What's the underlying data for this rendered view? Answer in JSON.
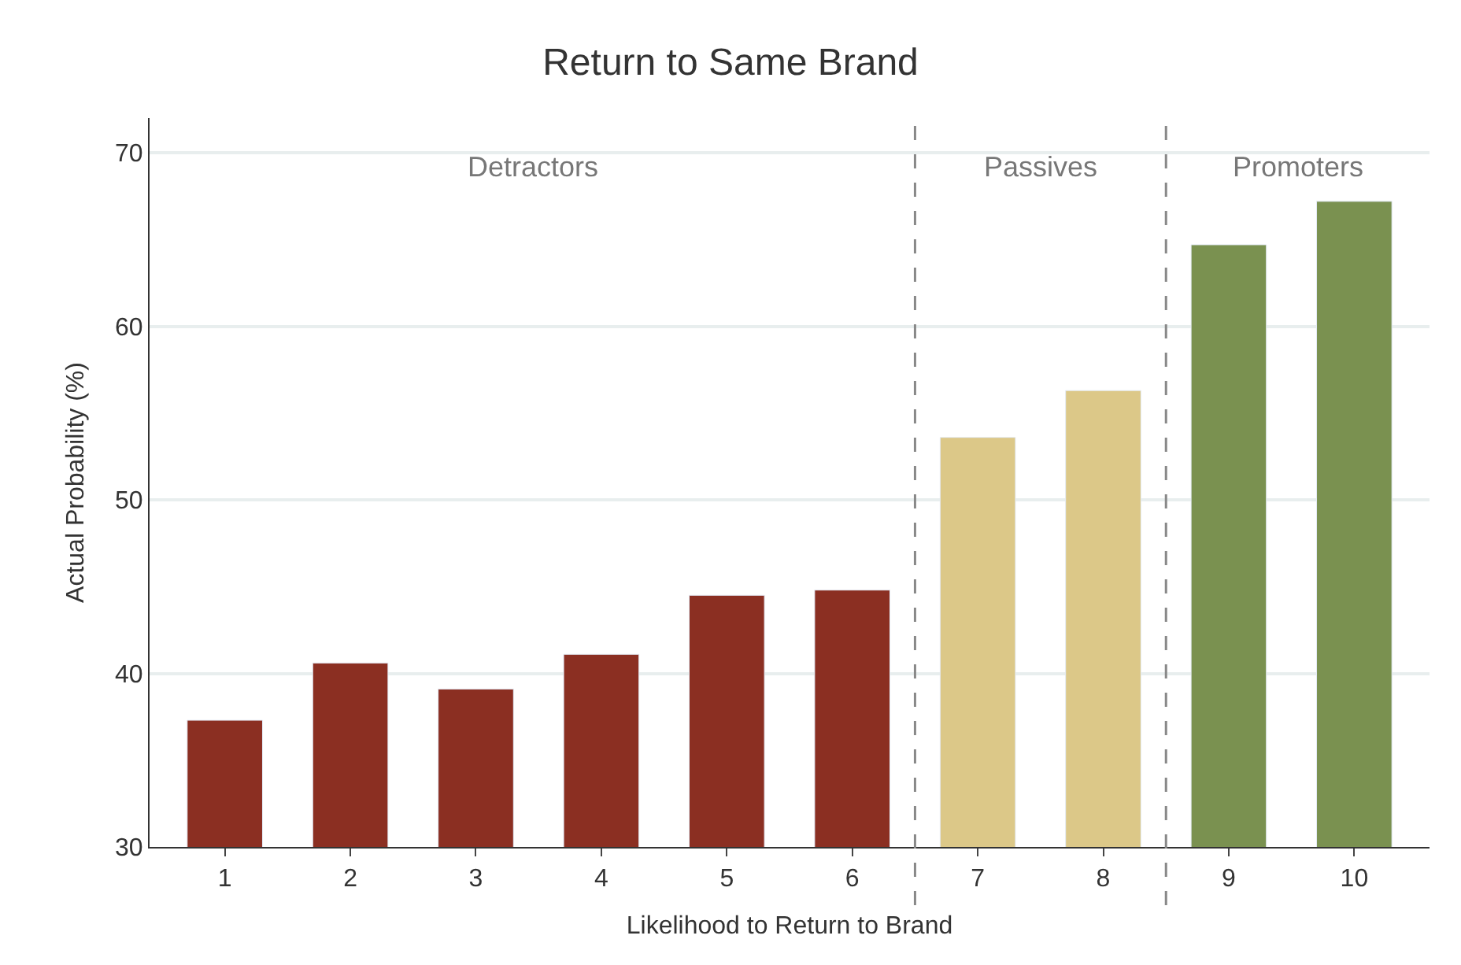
{
  "chart_data": {
    "type": "bar",
    "title": "Return to Same Brand",
    "xlabel": "Likelihood to Return to Brand",
    "ylabel": "Actual Probability (%)",
    "x": [
      1,
      2,
      3,
      4,
      5,
      6,
      7,
      8,
      9,
      10
    ],
    "values": [
      37.3,
      40.6,
      39.1,
      41.1,
      44.5,
      44.8,
      53.6,
      56.3,
      64.7,
      67.2
    ],
    "colors": [
      "#8b2f22",
      "#8b2f22",
      "#8b2f22",
      "#8b2f22",
      "#8b2f22",
      "#8b2f22",
      "#dcc888",
      "#dcc888",
      "#7a9150",
      "#7a9150"
    ],
    "xlim": [
      0.4,
      10.6
    ],
    "xticks": [
      1,
      2,
      3,
      4,
      5,
      6,
      7,
      8,
      9,
      10
    ],
    "ylim": [
      30,
      72
    ],
    "yticks": [
      30,
      40,
      50,
      60,
      70
    ],
    "grid": "y",
    "ref_lines": [
      {
        "axis": "x",
        "value": 6.5,
        "color": "#888888",
        "line_style": "dashed"
      },
      {
        "axis": "x",
        "value": 8.5,
        "color": "#888888",
        "line_style": "dashed"
      }
    ],
    "annotations": [
      "Detractors",
      "Passives",
      "Promoters"
    ]
  }
}
